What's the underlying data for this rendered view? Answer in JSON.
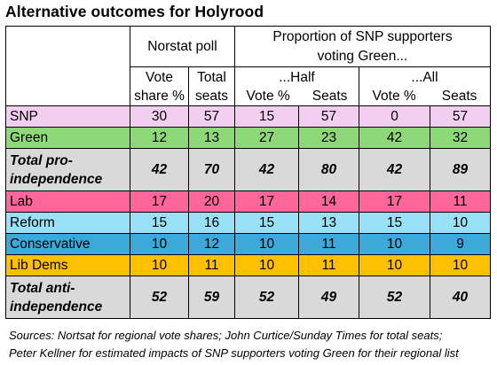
{
  "title": "Alternative outcomes for Holyrood",
  "header": {
    "group1": "Norstat poll",
    "group2_line1": "Proportion of SNP supporters",
    "group2_line2": "voting Green...",
    "half": "...Half",
    "all": "...All",
    "vote_share_1": "Vote",
    "vote_share_2": "share %",
    "total_seats_1": "Total",
    "total_seats_2": "seats",
    "vote_pct": "Vote %",
    "seats": "Seats"
  },
  "rows": [
    {
      "label": "SNP",
      "bg": "#f2cff0",
      "values": [
        "30",
        "57",
        "15",
        "57",
        "0",
        "57"
      ]
    },
    {
      "label": "Green",
      "bg": "#8fd87a",
      "values": [
        "12",
        "13",
        "27",
        "23",
        "42",
        "32"
      ]
    },
    {
      "label_1": "Total pro-",
      "label_2": "independence",
      "bg": "#d9d9d9",
      "values": [
        "42",
        "70",
        "42",
        "80",
        "42",
        "89"
      ]
    },
    {
      "label": "Lab",
      "bg": "#ff6699",
      "values": [
        "17",
        "20",
        "17",
        "14",
        "17",
        "11"
      ]
    },
    {
      "label": "Reform",
      "bg": "#99e1f7",
      "values": [
        "15",
        "16",
        "15",
        "13",
        "15",
        "10"
      ]
    },
    {
      "label": "Conservative",
      "bg": "#3ea9d9",
      "values": [
        "10",
        "12",
        "10",
        "11",
        "10",
        "9"
      ]
    },
    {
      "label": "Lib Dems",
      "bg": "#ffc000",
      "values": [
        "10",
        "11",
        "10",
        "11",
        "10",
        "10"
      ]
    },
    {
      "label_1": "Total anti-",
      "label_2": "independence",
      "bg": "#d9d9d9",
      "values": [
        "52",
        "59",
        "52",
        "49",
        "52",
        "40"
      ]
    }
  ],
  "footer": {
    "line1": "Sources: Nortsat for regional vote shares; John Curtice/Sunday Times for total seats;",
    "line2": "Peter Kellner for estimated impacts of SNP supporters voting Green for their regional list"
  }
}
